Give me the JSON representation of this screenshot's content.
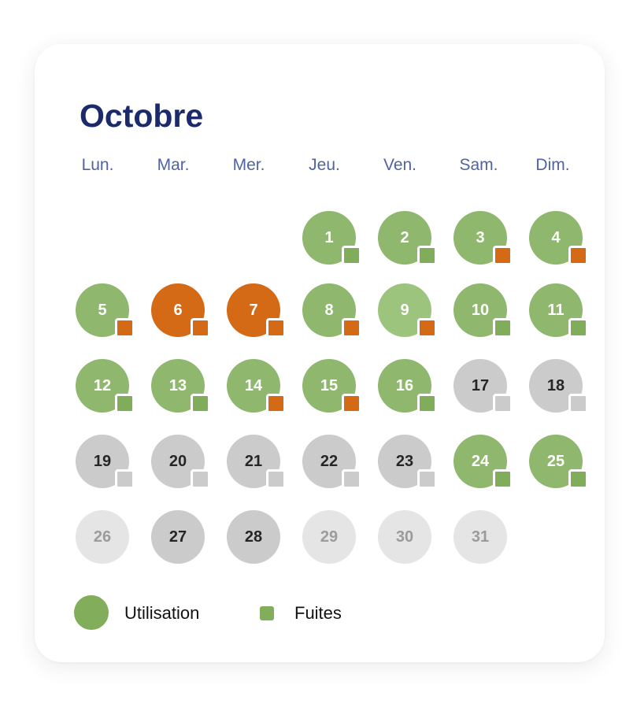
{
  "calendar": {
    "month": "Octobre",
    "weekdays": [
      "Lun.",
      "Mar.",
      "Mer.",
      "Jeu.",
      "Ven.",
      "Sam.",
      "Dim."
    ],
    "first_weekday_index": 3,
    "colors": {
      "usage_green": "#8fb86e",
      "usage_lightgreen": "#9dc47c",
      "usage_orange": "#d56a16",
      "no_data_gray": "#cbcbcb",
      "future_empty": "#e5e5e5",
      "leak_green": "#7fad59",
      "leak_orange": "#d56a16",
      "leak_gray": "#cbcbcb"
    },
    "days": [
      {
        "day": "1",
        "usage": "green",
        "leak": "green"
      },
      {
        "day": "2",
        "usage": "green",
        "leak": "green"
      },
      {
        "day": "3",
        "usage": "green",
        "leak": "orange"
      },
      {
        "day": "4",
        "usage": "green",
        "leak": "orange"
      },
      {
        "day": "5",
        "usage": "green",
        "leak": "orange"
      },
      {
        "day": "6",
        "usage": "orange",
        "leak": "orange"
      },
      {
        "day": "7",
        "usage": "orange",
        "leak": "orange"
      },
      {
        "day": "8",
        "usage": "green",
        "leak": "orange"
      },
      {
        "day": "9",
        "usage": "lightgreen",
        "leak": "orange"
      },
      {
        "day": "10",
        "usage": "green",
        "leak": "green"
      },
      {
        "day": "11",
        "usage": "green",
        "leak": "green"
      },
      {
        "day": "12",
        "usage": "green",
        "leak": "green"
      },
      {
        "day": "13",
        "usage": "green",
        "leak": "green"
      },
      {
        "day": "14",
        "usage": "green",
        "leak": "orange"
      },
      {
        "day": "15",
        "usage": "green",
        "leak": "orange"
      },
      {
        "day": "16",
        "usage": "green",
        "leak": "green"
      },
      {
        "day": "17",
        "usage": "gray",
        "leak": "gray"
      },
      {
        "day": "18",
        "usage": "gray",
        "leak": "gray"
      },
      {
        "day": "19",
        "usage": "gray",
        "leak": "gray"
      },
      {
        "day": "20",
        "usage": "gray",
        "leak": "gray"
      },
      {
        "day": "21",
        "usage": "gray",
        "leak": "gray"
      },
      {
        "day": "22",
        "usage": "gray",
        "leak": "gray"
      },
      {
        "day": "23",
        "usage": "gray",
        "leak": "gray"
      },
      {
        "day": "24",
        "usage": "green",
        "leak": "green"
      },
      {
        "day": "25",
        "usage": "green",
        "leak": "green"
      },
      {
        "day": "26",
        "usage": "empty",
        "leak": "none"
      },
      {
        "day": "27",
        "usage": "gray",
        "leak": "none"
      },
      {
        "day": "28",
        "usage": "gray",
        "leak": "none"
      },
      {
        "day": "29",
        "usage": "empty",
        "leak": "none"
      },
      {
        "day": "30",
        "usage": "empty",
        "leak": "none"
      },
      {
        "day": "31",
        "usage": "empty",
        "leak": "none"
      }
    ]
  },
  "legend": {
    "usage_label": "Utilisation",
    "leaks_label": "Fuites",
    "usage_color": "#82ae5b",
    "leaks_color": "#82ae5b"
  }
}
